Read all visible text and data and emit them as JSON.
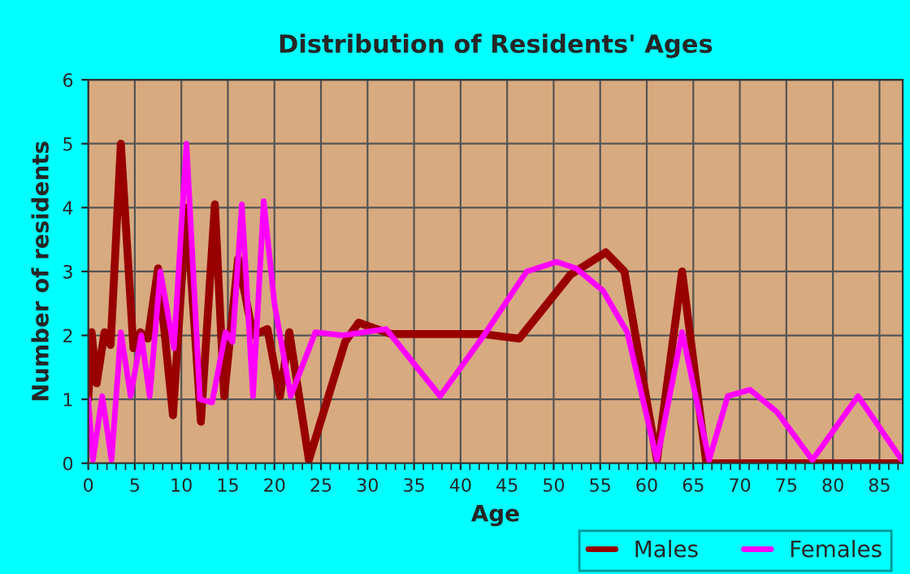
{
  "chart_data": {
    "type": "line",
    "title": "Distribution of Residents' Ages",
    "xlabel": "Age",
    "ylabel": "Number of residents",
    "xlim": [
      0,
      87.5
    ],
    "xticks": [
      0,
      5,
      10,
      15,
      20,
      25,
      30,
      35,
      40,
      45,
      50,
      55,
      60,
      65,
      70,
      75,
      80,
      85
    ],
    "ylim": [
      0,
      6
    ],
    "yticks": [
      0,
      1,
      2,
      3,
      4,
      5,
      6
    ],
    "grid": true,
    "legend": "bottom right",
    "marker": "none",
    "line_style": "solid",
    "series": [
      {
        "name": "Males",
        "color": "#990000",
        "x": [
          0,
          0.35,
          0.9,
          1.75,
          2.4,
          3.5,
          4.85,
          5.6,
          6.4,
          7.5,
          9.1,
          10.55,
          12.1,
          13.6,
          14.6,
          16.1,
          17.7,
          19.25,
          20.6,
          21.6,
          23.7,
          27.6,
          29.05,
          32.55,
          42.5,
          46.3,
          51.8,
          55.6,
          57.6,
          61.1,
          63.8,
          66.4,
          87.5
        ],
        "values": [
          1.0,
          2.05,
          1.25,
          2.05,
          1.85,
          5.0,
          1.8,
          2.05,
          1.95,
          3.05,
          0.75,
          4.0,
          0.65,
          4.05,
          1.05,
          3.2,
          2.0,
          2.1,
          1.05,
          2.05,
          0.05,
          1.9,
          2.2,
          2.02,
          2.02,
          1.95,
          2.95,
          3.3,
          3.0,
          0.05,
          3.0,
          0.0,
          0.0
        ]
      },
      {
        "name": "Females",
        "color": "#ff00ff",
        "x": [
          0,
          0.5,
          1.5,
          2.5,
          3.5,
          4.55,
          5.7,
          6.6,
          7.75,
          9.2,
          10.55,
          12.0,
          13.3,
          14.75,
          15.5,
          16.5,
          17.7,
          18.85,
          20.0,
          21.75,
          24.4,
          27.3,
          32.0,
          37.8,
          42.5,
          47.1,
          50.3,
          52.4,
          55.3,
          57.9,
          61.1,
          63.8,
          66.7,
          68.7,
          71.1,
          74.0,
          77.8,
          82.7,
          87.4
        ],
        "values": [
          1.0,
          0.05,
          1.05,
          0.05,
          2.05,
          1.05,
          2.0,
          1.05,
          3.0,
          1.8,
          5.0,
          1.0,
          0.95,
          2.05,
          1.9,
          4.05,
          1.05,
          4.1,
          2.5,
          1.05,
          2.05,
          2.0,
          2.1,
          1.05,
          2.0,
          3.0,
          3.15,
          3.05,
          2.7,
          2.05,
          0.05,
          2.05,
          0.05,
          1.05,
          1.15,
          0.8,
          0.05,
          1.05,
          0.05
        ]
      }
    ]
  }
}
